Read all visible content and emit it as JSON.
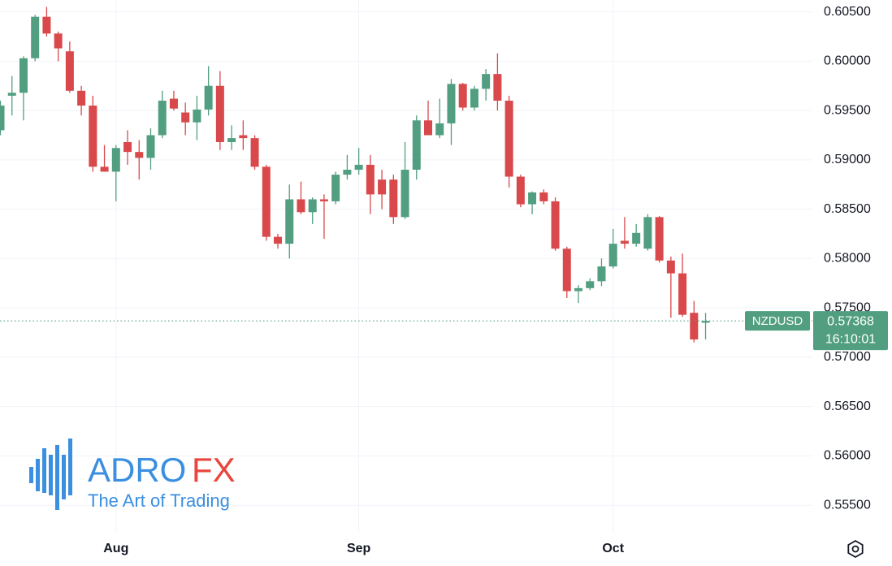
{
  "chart_data": {
    "type": "candlestick",
    "symbol": "NZDUSD",
    "countdown": "16:10:01",
    "categories": [
      null,
      null,
      null,
      null,
      null,
      null,
      null,
      null,
      null,
      null,
      "Aug",
      null,
      null,
      null,
      null,
      null,
      null,
      null,
      null,
      null,
      null,
      null,
      null,
      null,
      null,
      null,
      null,
      null,
      null,
      null,
      null,
      "Sep",
      null,
      null,
      null,
      null,
      null,
      null,
      null,
      null,
      null,
      null,
      null,
      null,
      null,
      null,
      null,
      null,
      null,
      null,
      null,
      null,
      null,
      "Oct",
      null,
      null,
      null,
      null,
      null,
      null,
      null,
      null
    ],
    "open": [
      0.593,
      0.5965,
      0.5968,
      0.6003,
      0.6045,
      0.6028,
      0.601,
      0.597,
      0.5955,
      0.5893,
      0.5888,
      0.5918,
      0.5908,
      0.5902,
      0.5925,
      0.5962,
      0.5948,
      0.5938,
      0.5951,
      0.5975,
      0.5918,
      0.5925,
      0.5922,
      0.5893,
      0.5822,
      0.5815,
      0.586,
      0.5847,
      0.586,
      0.5858,
      0.5885,
      0.589,
      0.5895,
      0.588,
      0.588,
      0.5842,
      0.589,
      0.594,
      0.5925,
      0.5937,
      0.5977,
      0.5953,
      0.5972,
      0.5987,
      0.596,
      0.5883,
      0.5855,
      0.5867,
      0.5858,
      0.581,
      0.5767,
      0.577,
      0.5777,
      0.5792,
      0.5818,
      0.5815,
      0.581,
      0.5842,
      0.5798,
      0.5785,
      0.5745,
      0.5735
    ],
    "high": [
      0.596,
      0.5985,
      0.6005,
      0.6047,
      0.6055,
      0.603,
      0.602,
      0.5975,
      0.5965,
      0.5915,
      0.5915,
      0.593,
      0.592,
      0.5932,
      0.597,
      0.597,
      0.5958,
      0.5965,
      0.5995,
      0.599,
      0.5935,
      0.594,
      0.5925,
      0.5895,
      0.5825,
      0.5875,
      0.5878,
      0.5862,
      0.5865,
      0.5888,
      0.5905,
      0.5912,
      0.5905,
      0.589,
      0.5885,
      0.5918,
      0.5945,
      0.596,
      0.5962,
      0.5982,
      0.5978,
      0.5975,
      0.5992,
      0.6008,
      0.5965,
      0.5885,
      0.5868,
      0.587,
      0.5862,
      0.5812,
      0.5773,
      0.578,
      0.58,
      0.583,
      0.5842,
      0.5835,
      0.5845,
      0.5843,
      0.5802,
      0.5805,
      0.5757,
      0.5745
    ],
    "low": [
      0.5925,
      0.5945,
      0.594,
      0.6,
      0.6025,
      0.6,
      0.5968,
      0.5945,
      0.5888,
      0.5888,
      0.5858,
      0.5895,
      0.588,
      0.589,
      0.5922,
      0.595,
      0.5925,
      0.592,
      0.5945,
      0.591,
      0.591,
      0.591,
      0.589,
      0.5818,
      0.581,
      0.58,
      0.5845,
      0.5835,
      0.582,
      0.5855,
      0.588,
      0.5885,
      0.5845,
      0.585,
      0.5835,
      0.584,
      0.588,
      0.5925,
      0.5922,
      0.5915,
      0.595,
      0.595,
      0.596,
      0.595,
      0.5872,
      0.5852,
      0.5845,
      0.5855,
      0.5808,
      0.576,
      0.5755,
      0.5768,
      0.5772,
      0.579,
      0.581,
      0.5812,
      0.5808,
      0.5796,
      0.574,
      0.5741,
      0.5715,
      0.5718
    ],
    "close": [
      0.5955,
      0.5968,
      0.6003,
      0.6045,
      0.6028,
      0.6013,
      0.597,
      0.5955,
      0.5893,
      0.5888,
      0.5912,
      0.5908,
      0.5902,
      0.5925,
      0.596,
      0.5952,
      0.5938,
      0.5951,
      0.5975,
      0.5918,
      0.5922,
      0.5922,
      0.5893,
      0.5822,
      0.5815,
      0.586,
      0.5847,
      0.586,
      0.5858,
      0.5885,
      0.589,
      0.5895,
      0.5865,
      0.5865,
      0.5842,
      0.589,
      0.594,
      0.5925,
      0.5937,
      0.5977,
      0.5953,
      0.5972,
      0.5987,
      0.596,
      0.5883,
      0.5855,
      0.5867,
      0.5858,
      0.581,
      0.5767,
      0.577,
      0.5777,
      0.5792,
      0.5815,
      0.5815,
      0.5826,
      0.5842,
      0.5798,
      0.5785,
      0.5743,
      0.5718,
      0.57368
    ],
    "up_color": "#519e80",
    "down_color": "#d9494b",
    "ylim": [
      0.5523,
      0.6062
    ],
    "yticks": [
      {
        "value": 0.605,
        "label": "0.60500"
      },
      {
        "value": 0.6,
        "label": "0.60000"
      },
      {
        "value": 0.595,
        "label": "0.59500"
      },
      {
        "value": 0.59,
        "label": "0.59000"
      },
      {
        "value": 0.585,
        "label": "0.58500"
      },
      {
        "value": 0.58,
        "label": "0.58000"
      },
      {
        "value": 0.575,
        "label": "0.57500"
      },
      {
        "value": 0.57,
        "label": "0.57000"
      },
      {
        "value": 0.565,
        "label": "0.56500"
      },
      {
        "value": 0.56,
        "label": "0.56000"
      },
      {
        "value": 0.555,
        "label": "0.55500"
      }
    ],
    "grid": true
  },
  "watermark": {
    "brand": "ADRO",
    "brand_accent": "FX",
    "tagline": "The Art of Trading"
  }
}
